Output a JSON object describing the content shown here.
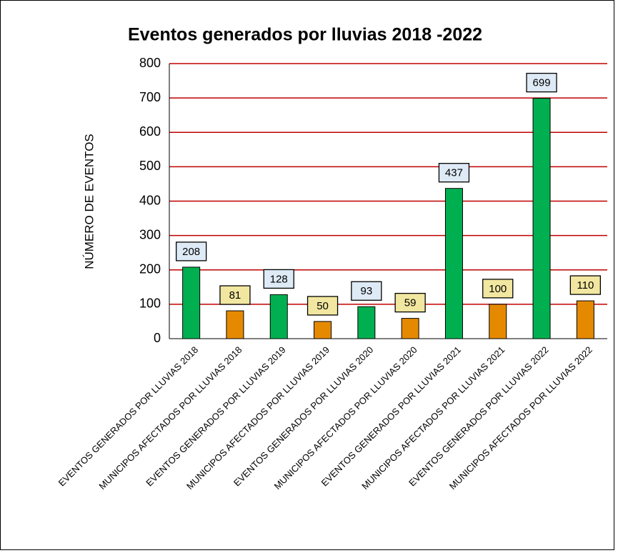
{
  "chart_data": {
    "type": "bar",
    "title": "Eventos generados por lluvias 2018 -2022",
    "y_label": "NÚMERO DE EVENTOS",
    "categories": [
      "EVENTOS GENERADOS POR LLUVIAS 2018",
      "MUNICIPOS AFECTADOS POR LLUVIAS 2018",
      "EVENTOS GENERADOS POR LLUVIAS 2019",
      "MUNICIPOS AFECTADOS POR LLUVIAS 2019",
      "EVENTOS GENERADOS POR LLUVIAS 2020",
      "MUNICIPOS AFECTADOS POR LLUVIAS 2020",
      "EVENTOS GENERADOS POR LLUVIAS 2021",
      "MUNICIPOS AFECTADOS POR LLUVIAS 2021",
      "EVENTOS GENERADOS POR LLUVIAS 2022",
      "MUNICIPOS AFECTADOS POR LLUVIAS 2022"
    ],
    "values": [
      208,
      81,
      128,
      50,
      93,
      59,
      437,
      100,
      699,
      110
    ],
    "colors": [
      "#00b050",
      "#e58a00",
      "#00b050",
      "#e58a00",
      "#00b050",
      "#e58a00",
      "#00b050",
      "#e58a00",
      "#00b050",
      "#e58a00"
    ],
    "label_colors": [
      "#deeaf6",
      "#f2e7a0",
      "#deeaf6",
      "#f2e7a0",
      "#deeaf6",
      "#f2e7a0",
      "#deeaf6",
      "#f2e7a0",
      "#deeaf6",
      "#f2e7a0"
    ],
    "grid_color": "#c00000",
    "ylim": [
      0,
      800
    ],
    "yticks": [
      0,
      100,
      200,
      300,
      400,
      500,
      600,
      700,
      800
    ],
    "grid": true
  }
}
